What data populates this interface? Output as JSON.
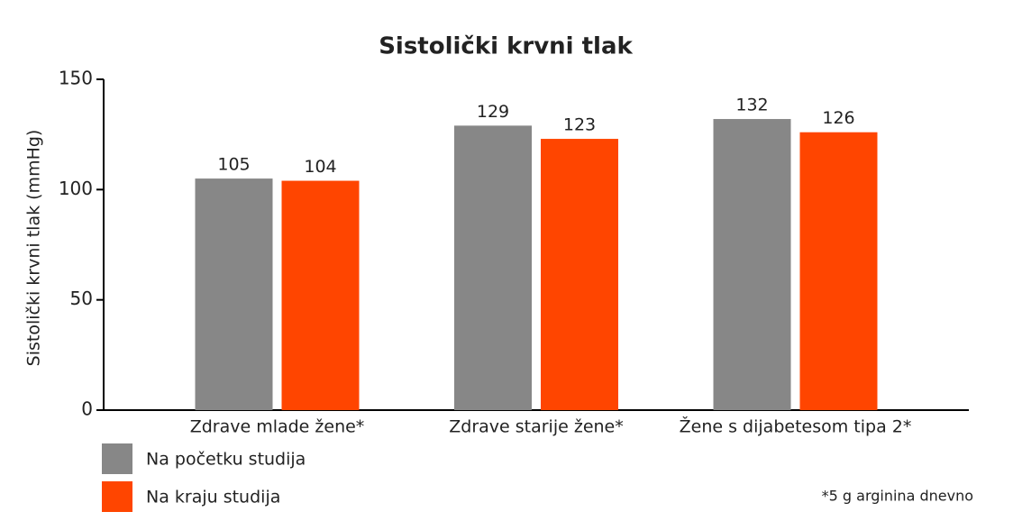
{
  "chart_data": {
    "type": "bar",
    "title": "Sistolički krvni tlak",
    "y_label": "Sistolički krvni tlak (mmHg)",
    "categories": [
      "Zdrave mlade žene*",
      "Zdrave starije žene*",
      "Žene s dijabetesom tipa 2*"
    ],
    "series": [
      {
        "name": "Na početku studija",
        "color": "#878787",
        "values": [
          105,
          129,
          132
        ]
      },
      {
        "name": "Na kraju studija",
        "color": "#ff4500",
        "values": [
          104,
          123,
          126
        ]
      }
    ],
    "ylim": [
      0,
      150
    ],
    "yticks": [
      0,
      50,
      100,
      150
    ],
    "note": "*5 g arginina dnevno"
  }
}
